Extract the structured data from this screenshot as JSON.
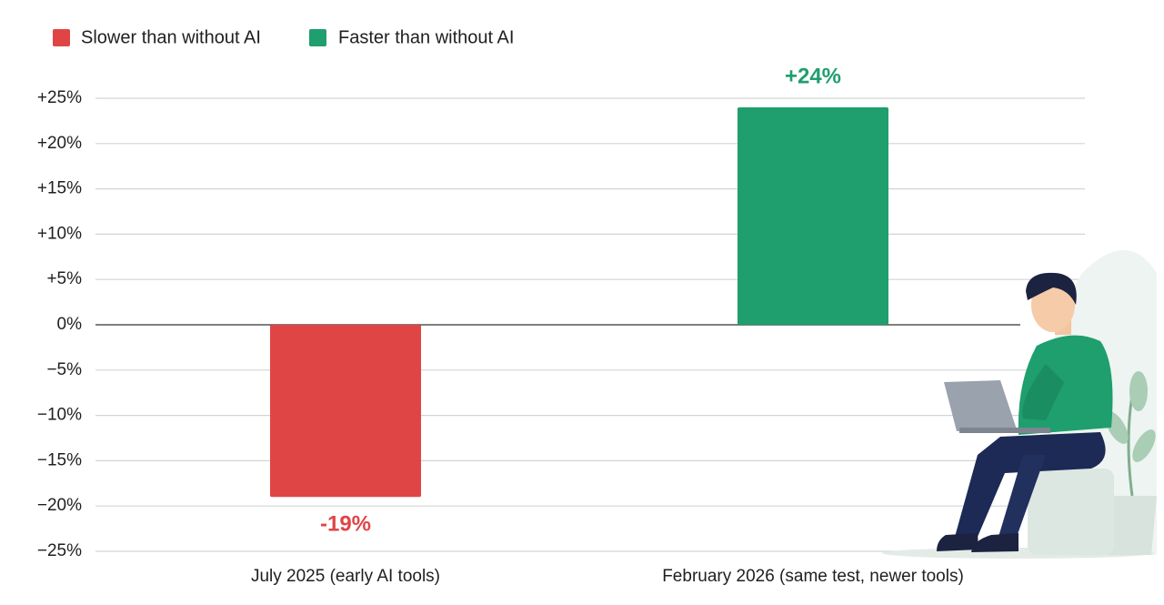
{
  "chart_data": {
    "type": "bar",
    "categories": [
      "July 2025 (early AI tools)",
      "February 2026 (same test, newer tools)"
    ],
    "series": [
      {
        "name": "Slower than without AI",
        "color": "#e04546",
        "values": [
          -19,
          null
        ],
        "value_labels": [
          "-19%",
          null
        ]
      },
      {
        "name": "Faster than without AI",
        "color": "#1f9e6e",
        "values": [
          null,
          24
        ],
        "value_labels": [
          null,
          "+24%"
        ]
      }
    ],
    "ylim": [
      -25,
      25
    ],
    "yticks": [
      {
        "value": -25,
        "label": "−25%"
      },
      {
        "value": -20,
        "label": "−20%"
      },
      {
        "value": -15,
        "label": "−15%"
      },
      {
        "value": -10,
        "label": "−10%"
      },
      {
        "value": -5,
        "label": "−5%"
      },
      {
        "value": 0,
        "label": "0%"
      },
      {
        "value": 5,
        "label": "+5%"
      },
      {
        "value": 10,
        "label": "+10%"
      },
      {
        "value": 15,
        "label": "+15%"
      },
      {
        "value": 20,
        "label": "+20%"
      },
      {
        "value": 25,
        "label": "+25%"
      }
    ],
    "grid": true,
    "legend": "top-left"
  }
}
